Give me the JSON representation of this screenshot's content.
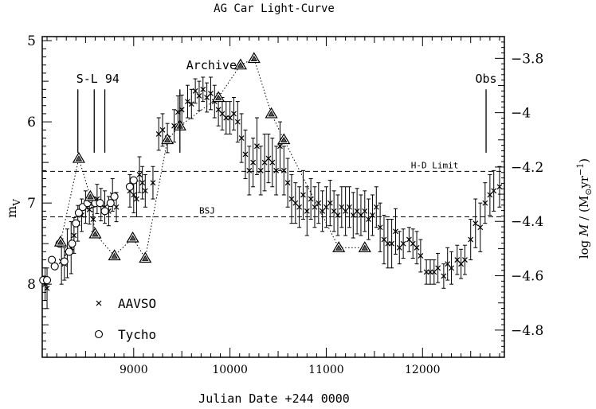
{
  "chart_data": {
    "type": "scatter",
    "title": "AG Car Light-Curve",
    "xlabel": "Julian Date +244 0000",
    "ylabel": "m",
    "ylabel_sub": "V",
    "y2label_prefix": "log ",
    "y2label_var": "M",
    "y2label_units": " / (M",
    "y2label_units_sub": "⊙",
    "y2label_units_tail": "yr",
    "y2label_units_sup": "−1",
    "y2label_close": ")",
    "xlim": [
      8050,
      12850
    ],
    "ylim": [
      8.9,
      4.95
    ],
    "y2lim": [
      -4.9,
      -3.72
    ],
    "x_ticks": [
      9000,
      10000,
      11000,
      12000
    ],
    "x_tick_labels": [
      "9000",
      "10000",
      "11000",
      "12000"
    ],
    "y_ticks": [
      5,
      6,
      7,
      8
    ],
    "y_tick_labels": [
      "5",
      "6",
      "7",
      "8"
    ],
    "y2_ticks": [
      -3.8,
      -4.0,
      -4.2,
      -4.4,
      -4.6,
      -4.8
    ],
    "y2_tick_labels": [
      "−3.8",
      "−4",
      "−4.2",
      "−4.4",
      "−4.6",
      "−4.8"
    ],
    "hlines": [
      {
        "y": 6.61,
        "label": "H-D Limit",
        "label_x": 11880
      },
      {
        "y": 7.17,
        "label": "BSJ",
        "label_x": 9680
      }
    ],
    "markers": [
      {
        "x": 8420,
        "label": "S-L 94"
      },
      {
        "x": 8590,
        "label": ""
      },
      {
        "x": 8700,
        "label": ""
      },
      {
        "x": 9480,
        "label": "Archive"
      },
      {
        "x": 12660,
        "label": "Obs"
      }
    ],
    "legend": [
      {
        "symbol": "x",
        "label": "AAVSO"
      },
      {
        "symbol": "o",
        "label": "Tycho"
      }
    ],
    "series": [
      {
        "name": "AAVSO",
        "symbol": "x",
        "points": [
          [
            8080,
            8.0,
            0.2
          ],
          [
            8100,
            8.05,
            0.25
          ],
          [
            8250,
            7.72,
            0.28
          ],
          [
            8280,
            7.75,
            0.2
          ],
          [
            8310,
            7.62,
            0.3
          ],
          [
            8350,
            7.55,
            0.32
          ],
          [
            8380,
            7.4,
            0.22
          ],
          [
            8420,
            7.25,
            0.22
          ],
          [
            8460,
            7.15,
            0.2
          ],
          [
            8500,
            7.05,
            0.2
          ],
          [
            8540,
            7.08,
            0.18
          ],
          [
            8580,
            7.2,
            0.15
          ],
          [
            8620,
            6.95,
            0.18
          ],
          [
            8660,
            7.02,
            0.2
          ],
          [
            8700,
            7.05,
            0.2
          ],
          [
            8740,
            7.1,
            0.18
          ],
          [
            8780,
            6.9,
            0.2
          ],
          [
            8820,
            7.05,
            0.18
          ],
          [
            8960,
            6.85,
            0.2
          ],
          [
            9000,
            6.9,
            0.22
          ],
          [
            9030,
            6.95,
            0.22
          ],
          [
            9060,
            6.65,
            0.22
          ],
          [
            9090,
            6.75,
            0.2
          ],
          [
            9120,
            6.85,
            0.2
          ],
          [
            9200,
            6.75,
            0.2
          ],
          [
            9260,
            6.15,
            0.2
          ],
          [
            9300,
            6.1,
            0.2
          ],
          [
            9350,
            6.2,
            0.18
          ],
          [
            9420,
            6.05,
            0.2
          ],
          [
            9460,
            5.88,
            0.2
          ],
          [
            9500,
            5.85,
            0.18
          ],
          [
            9560,
            5.75,
            0.2
          ],
          [
            9600,
            5.78,
            0.18
          ],
          [
            9640,
            5.62,
            0.15
          ],
          [
            9680,
            5.68,
            0.18
          ],
          [
            9720,
            5.6,
            0.15
          ],
          [
            9760,
            5.7,
            0.18
          ],
          [
            9800,
            5.65,
            0.2
          ],
          [
            9840,
            5.75,
            0.2
          ],
          [
            9880,
            5.85,
            0.2
          ],
          [
            9920,
            5.9,
            0.2
          ],
          [
            9960,
            5.95,
            0.2
          ],
          [
            10000,
            5.95,
            0.2
          ],
          [
            10040,
            5.9,
            0.2
          ],
          [
            10080,
            6.0,
            0.25
          ],
          [
            10120,
            6.2,
            0.3
          ],
          [
            10160,
            6.4,
            0.3
          ],
          [
            10200,
            6.6,
            0.3
          ],
          [
            10240,
            6.5,
            0.3
          ],
          [
            10280,
            6.3,
            0.35
          ],
          [
            10320,
            6.6,
            0.3
          ],
          [
            10360,
            6.5,
            0.35
          ],
          [
            10400,
            6.45,
            0.3
          ],
          [
            10440,
            6.5,
            0.3
          ],
          [
            10480,
            6.6,
            0.3
          ],
          [
            10520,
            6.3,
            0.3
          ],
          [
            10560,
            6.6,
            0.3
          ],
          [
            10600,
            6.75,
            0.3
          ],
          [
            10640,
            6.95,
            0.3
          ],
          [
            10680,
            7.0,
            0.25
          ],
          [
            10720,
            7.05,
            0.25
          ],
          [
            10760,
            6.9,
            0.3
          ],
          [
            10800,
            7.1,
            0.3
          ],
          [
            10840,
            6.95,
            0.25
          ],
          [
            10880,
            7.05,
            0.25
          ],
          [
            10920,
            7.0,
            0.25
          ],
          [
            10960,
            7.1,
            0.25
          ],
          [
            11000,
            7.05,
            0.25
          ],
          [
            11040,
            7.0,
            0.28
          ],
          [
            11080,
            7.1,
            0.25
          ],
          [
            11120,
            7.15,
            0.25
          ],
          [
            11160,
            7.05,
            0.25
          ],
          [
            11200,
            7.1,
            0.3
          ],
          [
            11240,
            7.05,
            0.25
          ],
          [
            11280,
            7.15,
            0.28
          ],
          [
            11320,
            7.1,
            0.28
          ],
          [
            11360,
            7.15,
            0.25
          ],
          [
            11400,
            7.1,
            0.25
          ],
          [
            11440,
            7.2,
            0.25
          ],
          [
            11480,
            7.15,
            0.25
          ],
          [
            11520,
            7.05,
            0.25
          ],
          [
            11560,
            7.3,
            0.3
          ],
          [
            11600,
            7.45,
            0.3
          ],
          [
            11640,
            7.5,
            0.3
          ],
          [
            11680,
            7.5,
            0.3
          ],
          [
            11720,
            7.35,
            0.28
          ],
          [
            11760,
            7.55,
            0.2
          ],
          [
            11800,
            7.5,
            0.18
          ],
          [
            11860,
            7.45,
            0.15
          ],
          [
            11900,
            7.5,
            0.18
          ],
          [
            11940,
            7.55,
            0.2
          ],
          [
            11980,
            7.65,
            0.2
          ],
          [
            12040,
            7.85,
            0.15
          ],
          [
            12080,
            7.85,
            0.15
          ],
          [
            12120,
            7.85,
            0.15
          ],
          [
            12160,
            7.8,
            0.18
          ],
          [
            12220,
            7.9,
            0.15
          ],
          [
            12260,
            7.75,
            0.2
          ],
          [
            12300,
            7.8,
            0.2
          ],
          [
            12360,
            7.7,
            0.18
          ],
          [
            12400,
            7.75,
            0.18
          ],
          [
            12440,
            7.7,
            0.18
          ],
          [
            12500,
            7.45,
            0.25
          ],
          [
            12550,
            7.25,
            0.3
          ],
          [
            12600,
            7.3,
            0.3
          ],
          [
            12650,
            7.0,
            0.25
          ],
          [
            12700,
            6.9,
            0.25
          ],
          [
            12740,
            6.85,
            0.25
          ],
          [
            12800,
            6.8,
            0.25
          ]
        ]
      },
      {
        "name": "Tycho",
        "symbol": "o",
        "points": [
          [
            8060,
            7.95
          ],
          [
            8100,
            7.95
          ],
          [
            8150,
            7.7
          ],
          [
            8180,
            7.78
          ],
          [
            8230,
            7.5
          ],
          [
            8280,
            7.72
          ],
          [
            8330,
            7.6
          ],
          [
            8360,
            7.5
          ],
          [
            8400,
            7.25
          ],
          [
            8430,
            7.12
          ],
          [
            8470,
            7.05
          ],
          [
            8520,
            7.0
          ],
          [
            8560,
            6.95
          ],
          [
            8600,
            7.0
          ],
          [
            8650,
            7.0
          ],
          [
            8700,
            7.1
          ],
          [
            8760,
            7.0
          ],
          [
            8800,
            6.92
          ],
          [
            8960,
            6.8
          ],
          [
            9000,
            6.72
          ]
        ]
      },
      {
        "name": "",
        "symbol": "triangle",
        "points": [
          [
            8240,
            7.48
          ],
          [
            8430,
            6.45
          ],
          [
            8550,
            6.92
          ],
          [
            8600,
            7.38
          ],
          [
            8800,
            7.65
          ],
          [
            8990,
            7.43
          ],
          [
            9120,
            7.68
          ],
          [
            9350,
            6.22
          ],
          [
            9480,
            6.05
          ],
          [
            9880,
            5.7
          ],
          [
            10110,
            5.3
          ],
          [
            10250,
            5.22
          ],
          [
            10430,
            5.9
          ],
          [
            10560,
            6.22
          ],
          [
            11130,
            7.55
          ],
          [
            11400,
            7.55
          ]
        ]
      }
    ],
    "dotted_line": [
      [
        8240,
        7.48
      ],
      [
        8430,
        6.45
      ],
      [
        8550,
        6.92
      ],
      [
        8600,
        7.38
      ],
      [
        8800,
        7.65
      ],
      [
        8990,
        7.43
      ],
      [
        9120,
        7.68
      ],
      [
        9350,
        6.22
      ],
      [
        9480,
        6.05
      ],
      [
        9880,
        5.7
      ],
      [
        10110,
        5.3
      ],
      [
        10250,
        5.22
      ],
      [
        10430,
        5.9
      ],
      [
        10560,
        6.22
      ],
      [
        11130,
        7.55
      ],
      [
        11400,
        7.55
      ]
    ]
  }
}
